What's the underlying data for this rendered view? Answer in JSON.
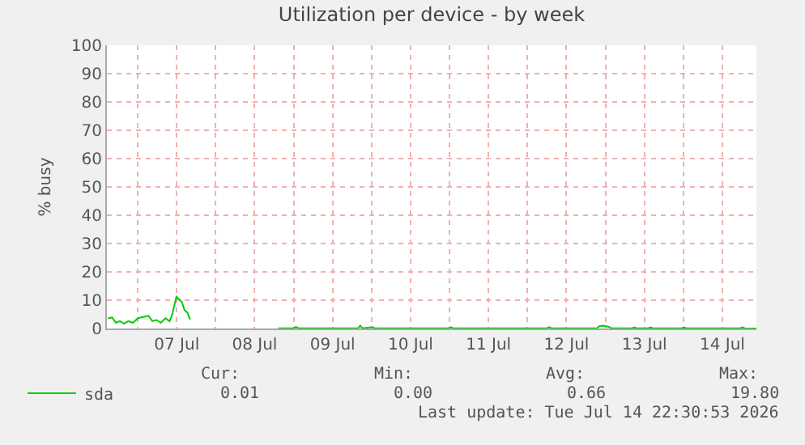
{
  "chart_data": {
    "type": "line",
    "title": "Utilization per device - by week",
    "ylabel": "% busy",
    "xlim": [
      "2026-07-06T14:30",
      "2026-07-14T22:30"
    ],
    "xticks": [
      {
        "value": "2026-07-07T00:00",
        "label": null
      },
      {
        "value": "2026-07-07T12:00",
        "label": "07 Jul"
      },
      {
        "value": "2026-07-08T00:00",
        "label": null
      },
      {
        "value": "2026-07-08T12:00",
        "label": "08 Jul"
      },
      {
        "value": "2026-07-09T00:00",
        "label": null
      },
      {
        "value": "2026-07-09T12:00",
        "label": "09 Jul"
      },
      {
        "value": "2026-07-10T00:00",
        "label": null
      },
      {
        "value": "2026-07-10T12:00",
        "label": "10 Jul"
      },
      {
        "value": "2026-07-11T00:00",
        "label": null
      },
      {
        "value": "2026-07-11T12:00",
        "label": "11 Jul"
      },
      {
        "value": "2026-07-12T00:00",
        "label": null
      },
      {
        "value": "2026-07-12T12:00",
        "label": "12 Jul"
      },
      {
        "value": "2026-07-13T00:00",
        "label": null
      },
      {
        "value": "2026-07-13T12:00",
        "label": "13 Jul"
      },
      {
        "value": "2026-07-14T00:00",
        "label": null
      },
      {
        "value": "2026-07-14T12:00",
        "label": "14 Jul"
      }
    ],
    "ylim": [
      0,
      100
    ],
    "yticks": [
      0,
      10,
      20,
      30,
      40,
      50,
      60,
      70,
      80,
      90,
      100
    ],
    "grid": true,
    "legend": "bottom left",
    "marker": "none",
    "line_style": "solid",
    "x": [
      "2026-07-06T14:48",
      "2026-07-06T16:06",
      "2026-07-06T17:18",
      "2026-07-06T18:30",
      "2026-07-06T19:48",
      "2026-07-06T21:06",
      "2026-07-06T22:30",
      "2026-07-07T00:00",
      "2026-07-07T01:36",
      "2026-07-07T03:18",
      "2026-07-07T04:30",
      "2026-07-07T05:48",
      "2026-07-07T07:06",
      "2026-07-07T08:30",
      "2026-07-07T09:48",
      "2026-07-07T10:30",
      "2026-07-07T11:18",
      "2026-07-07T11:54",
      "2026-07-07T12:48",
      "2026-07-07T13:36",
      "2026-07-07T14:24",
      "2026-07-07T15:18",
      "2026-07-07T16:06",
      "2026-07-08T06:00",
      "2026-07-08T19:15",
      "2026-07-09T00:00",
      "2026-07-09T00:42",
      "2026-07-09T01:30",
      "2026-07-09T19:48",
      "2026-07-09T20:30",
      "2026-07-09T21:12",
      "2026-07-10T00:18",
      "2026-07-10T01:00",
      "2026-07-10T23:42",
      "2026-07-11T00:24",
      "2026-07-11T01:06",
      "2026-07-12T06:00",
      "2026-07-12T06:42",
      "2026-07-12T07:24",
      "2026-07-12T21:24",
      "2026-07-12T22:06",
      "2026-07-12T23:18",
      "2026-07-13T01:06",
      "2026-07-13T01:48",
      "2026-07-13T08:12",
      "2026-07-13T08:54",
      "2026-07-13T09:36",
      "2026-07-13T13:12",
      "2026-07-13T13:54",
      "2026-07-13T14:36",
      "2026-07-13T23:30",
      "2026-07-14T00:12",
      "2026-07-14T00:54",
      "2026-07-14T17:30",
      "2026-07-14T18:12",
      "2026-07-14T18:54",
      "2026-07-14T22:30"
    ],
    "series": [
      {
        "name": "sda",
        "color": "#00cc00",
        "values": [
          3.6,
          3.9,
          2.0,
          2.6,
          1.7,
          2.6,
          2.0,
          3.6,
          4.1,
          4.5,
          2.6,
          3.0,
          2.0,
          3.6,
          2.6,
          4.5,
          8.3,
          11.2,
          10.3,
          9.3,
          6.5,
          5.6,
          3.2,
          null,
          0.1,
          0.1,
          0.6,
          0.1,
          0.1,
          1.0,
          0.1,
          0.5,
          0.1,
          0.1,
          0.5,
          0.1,
          0.1,
          0.5,
          0.1,
          0.1,
          0.8,
          1.0,
          0.6,
          0.1,
          0.1,
          0.4,
          0.1,
          0.1,
          0.4,
          0.1,
          0.1,
          0.4,
          0.1,
          0.1,
          0.4,
          0.1,
          0.01
        ]
      }
    ],
    "annotations": [
      "Cur:",
      "0.01",
      "Min:",
      "0.00",
      "Avg:",
      "0.66",
      "Max:",
      "19.80",
      "Last update: Tue Jul 14 22:30:53 2026"
    ]
  }
}
